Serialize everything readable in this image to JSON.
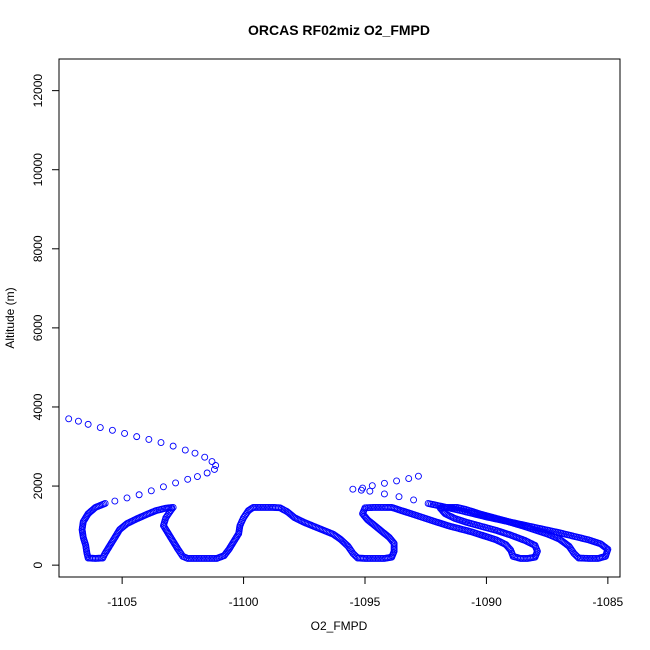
{
  "chart_data": {
    "type": "scatter",
    "title": "ORCAS RF02miz O2_FMPD",
    "xlabel": "O2_FMPD",
    "ylabel": "Altitude (m)",
    "xlim": [
      -1107.6,
      -1084.5
    ],
    "ylim": [
      -300,
      12800
    ],
    "x_ticks": [
      -1105,
      -1100,
      -1095,
      -1090,
      -1085
    ],
    "y_ticks": [
      0,
      2000,
      4000,
      6000,
      8000,
      10000,
      12000
    ],
    "x_tick_labels": [
      "-1105",
      "-1100",
      "-1095",
      "-1090",
      "-1085"
    ],
    "y_tick_labels": [
      "0",
      "2000",
      "4000",
      "6000",
      "8000",
      "10000",
      "12000"
    ],
    "grid": false,
    "legend": "none",
    "marker": "open-circle",
    "color": "#0000ff",
    "series": [
      {
        "path": [
          [
            -1107.2,
            3700
          ],
          [
            -1106.8,
            3640
          ],
          [
            -1106.4,
            3560
          ],
          [
            -1105.9,
            3480
          ],
          [
            -1105.4,
            3410
          ],
          [
            -1104.9,
            3330
          ],
          [
            -1104.4,
            3250
          ],
          [
            -1103.9,
            3180
          ],
          [
            -1103.4,
            3100
          ],
          [
            -1102.9,
            3010
          ],
          [
            -1102.4,
            2910
          ],
          [
            -1102.0,
            2830
          ],
          [
            -1101.6,
            2730
          ],
          [
            -1101.3,
            2620
          ],
          [
            -1101.15,
            2520
          ],
          [
            -1101.2,
            2420
          ],
          [
            -1101.5,
            2330
          ],
          [
            -1101.9,
            2240
          ],
          [
            -1102.3,
            2170
          ],
          [
            -1102.8,
            2080
          ],
          [
            -1103.3,
            1980
          ],
          [
            -1103.8,
            1880
          ],
          [
            -1104.3,
            1780
          ],
          [
            -1104.8,
            1700
          ],
          [
            -1105.3,
            1620
          ],
          [
            -1105.7,
            1560
          ],
          [
            -1106.1,
            1460
          ],
          [
            -1106.4,
            1300
          ],
          [
            -1106.6,
            1100
          ],
          [
            -1106.65,
            900
          ],
          [
            -1106.6,
            700
          ],
          [
            -1106.5,
            500
          ],
          [
            -1106.45,
            300
          ],
          [
            -1106.4,
            180
          ],
          [
            -1106.1,
            170
          ],
          [
            -1105.8,
            180
          ],
          [
            -1105.7,
            300
          ],
          [
            -1105.5,
            500
          ],
          [
            -1105.3,
            700
          ],
          [
            -1105.1,
            900
          ],
          [
            -1104.8,
            1050
          ],
          [
            -1104.4,
            1170
          ],
          [
            -1104.0,
            1280
          ],
          [
            -1103.6,
            1380
          ],
          [
            -1103.2,
            1440
          ],
          [
            -1102.9,
            1460
          ],
          [
            -1103.0,
            1380
          ],
          [
            -1103.2,
            1200
          ],
          [
            -1103.3,
            1000
          ],
          [
            -1103.1,
            800
          ],
          [
            -1102.9,
            600
          ],
          [
            -1102.7,
            400
          ],
          [
            -1102.5,
            220
          ],
          [
            -1102.3,
            170
          ],
          [
            -1101.9,
            170
          ],
          [
            -1101.5,
            170
          ],
          [
            -1101.1,
            170
          ],
          [
            -1100.8,
            240
          ],
          [
            -1100.6,
            400
          ],
          [
            -1100.4,
            600
          ],
          [
            -1100.2,
            800
          ],
          [
            -1100.15,
            1000
          ],
          [
            -1100.0,
            1200
          ],
          [
            -1099.8,
            1380
          ],
          [
            -1099.6,
            1460
          ],
          [
            -1099.2,
            1460
          ],
          [
            -1098.8,
            1460
          ],
          [
            -1098.5,
            1450
          ],
          [
            -1098.2,
            1350
          ],
          [
            -1097.9,
            1200
          ],
          [
            -1097.5,
            1080
          ],
          [
            -1097.1,
            980
          ],
          [
            -1096.7,
            880
          ],
          [
            -1096.3,
            780
          ],
          [
            -1096.0,
            650
          ],
          [
            -1095.7,
            480
          ],
          [
            -1095.5,
            300
          ],
          [
            -1095.3,
            180
          ],
          [
            -1095.0,
            170
          ],
          [
            -1094.6,
            170
          ],
          [
            -1094.2,
            170
          ],
          [
            -1093.9,
            200
          ],
          [
            -1093.8,
            350
          ],
          [
            -1093.8,
            550
          ],
          [
            -1094.0,
            700
          ],
          [
            -1094.3,
            850
          ],
          [
            -1094.6,
            1000
          ],
          [
            -1094.9,
            1150
          ],
          [
            -1095.1,
            1300
          ],
          [
            -1095.0,
            1450
          ],
          [
            -1094.6,
            1460
          ],
          [
            -1094.2,
            1460
          ],
          [
            -1093.9,
            1460
          ],
          [
            -1093.6,
            1400
          ],
          [
            -1093.1,
            1300
          ],
          [
            -1092.6,
            1200
          ],
          [
            -1092.1,
            1100
          ],
          [
            -1091.6,
            1000
          ],
          [
            -1091.1,
            920
          ],
          [
            -1090.6,
            840
          ],
          [
            -1090.1,
            740
          ],
          [
            -1089.6,
            640
          ],
          [
            -1089.2,
            520
          ],
          [
            -1089.0,
            380
          ],
          [
            -1088.9,
            220
          ],
          [
            -1088.6,
            170
          ],
          [
            -1088.3,
            170
          ],
          [
            -1088.0,
            200
          ],
          [
            -1087.9,
            350
          ],
          [
            -1088.0,
            500
          ],
          [
            -1088.4,
            620
          ],
          [
            -1089.0,
            760
          ],
          [
            -1089.6,
            880
          ],
          [
            -1090.2,
            980
          ],
          [
            -1090.8,
            1080
          ],
          [
            -1091.3,
            1180
          ],
          [
            -1091.7,
            1300
          ],
          [
            -1091.9,
            1440
          ],
          [
            -1091.6,
            1460
          ],
          [
            -1091.2,
            1460
          ],
          [
            -1090.8,
            1400
          ],
          [
            -1090.3,
            1300
          ],
          [
            -1089.7,
            1200
          ],
          [
            -1089.1,
            1100
          ],
          [
            -1088.5,
            990
          ],
          [
            -1088.0,
            890
          ],
          [
            -1087.5,
            790
          ],
          [
            -1087.0,
            660
          ],
          [
            -1086.6,
            480
          ],
          [
            -1086.4,
            300
          ],
          [
            -1086.2,
            180
          ],
          [
            -1085.8,
            170
          ],
          [
            -1085.4,
            170
          ],
          [
            -1085.1,
            220
          ],
          [
            -1085.0,
            400
          ],
          [
            -1085.3,
            540
          ],
          [
            -1085.8,
            640
          ],
          [
            -1086.4,
            730
          ],
          [
            -1087.0,
            820
          ],
          [
            -1087.6,
            900
          ],
          [
            -1088.2,
            980
          ],
          [
            -1088.8,
            1060
          ],
          [
            -1089.4,
            1140
          ],
          [
            -1090.0,
            1220
          ],
          [
            -1090.6,
            1310
          ],
          [
            -1091.2,
            1400
          ],
          [
            -1091.8,
            1480
          ],
          [
            -1092.4,
            1560
          ],
          [
            -1093.0,
            1650
          ],
          [
            -1093.6,
            1730
          ],
          [
            -1094.2,
            1800
          ],
          [
            -1094.8,
            1870
          ],
          [
            -1095.5,
            1920
          ],
          [
            -1095.1,
            1950
          ],
          [
            -1094.7,
            2010
          ],
          [
            -1094.2,
            2070
          ],
          [
            -1093.7,
            2130
          ],
          [
            -1093.2,
            2190
          ],
          [
            -1092.8,
            2250
          ]
        ]
      }
    ]
  }
}
